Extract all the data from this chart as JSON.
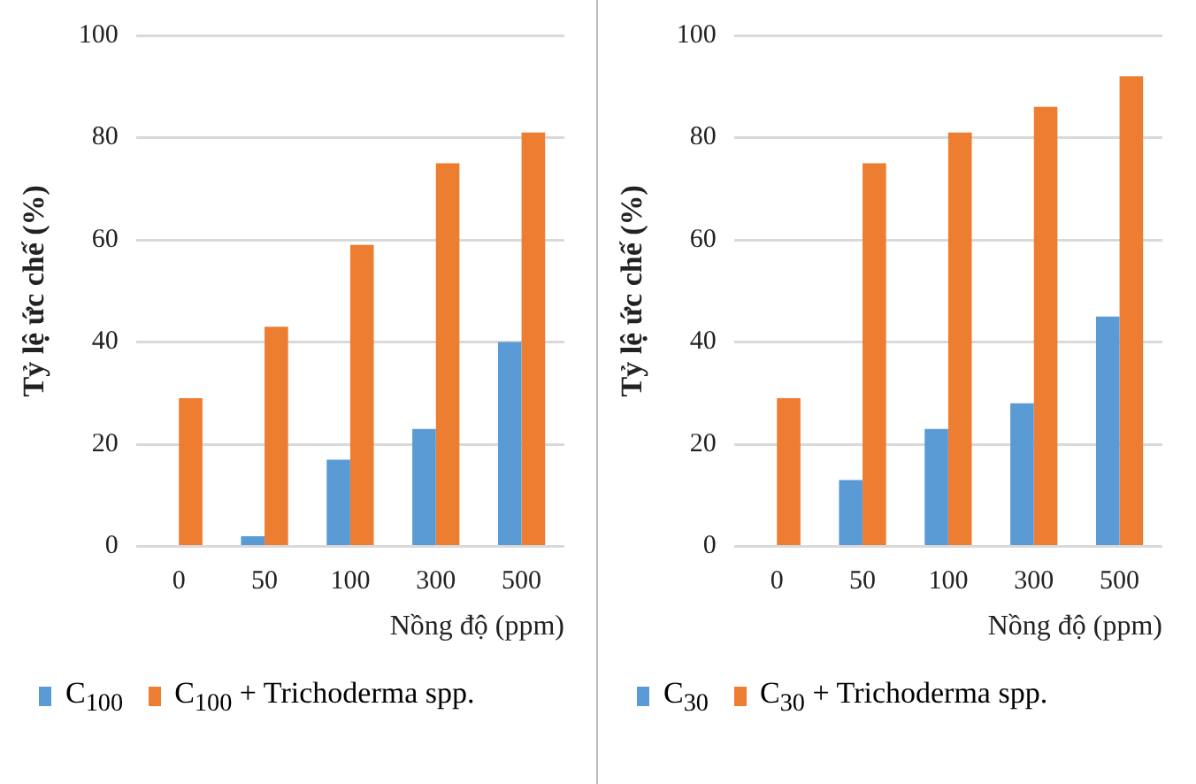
{
  "chart_data": [
    {
      "type": "bar",
      "xlabel": "Nồng độ (ppm)",
      "ylabel": "Tỷ lệ ức chế (%)",
      "categories": [
        "0",
        "50",
        "100",
        "300",
        "500"
      ],
      "series": [
        {
          "name": "C$_{100}$",
          "color": "#5b9bd5",
          "values": [
            0,
            2,
            17,
            23,
            40
          ]
        },
        {
          "name": "C$_{100}$ + Trichoderma spp.",
          "color": "#ed7d31",
          "values": [
            29,
            43,
            59,
            75,
            81
          ]
        }
      ],
      "ylim": [
        0,
        100
      ],
      "yticks": [
        0,
        20,
        40,
        60,
        80,
        100
      ],
      "grid": "y",
      "legend": "bottom left"
    },
    {
      "type": "bar",
      "xlabel": "Nồng độ (ppm)",
      "ylabel": "Tỷ lệ ức chế (%)",
      "categories": [
        "0",
        "50",
        "100",
        "300",
        "500"
      ],
      "series": [
        {
          "name": "C$_{30}$",
          "color": "#5b9bd5",
          "values": [
            0,
            13,
            23,
            28,
            45
          ]
        },
        {
          "name": "C$_{30}$ + Trichoderma spp.",
          "color": "#ed7d31",
          "values": [
            29,
            75,
            81,
            86,
            92
          ]
        }
      ],
      "ylim": [
        0,
        100
      ],
      "yticks": [
        0,
        20,
        40,
        60,
        80,
        100
      ],
      "grid": "y",
      "legend": "bottom left"
    }
  ]
}
